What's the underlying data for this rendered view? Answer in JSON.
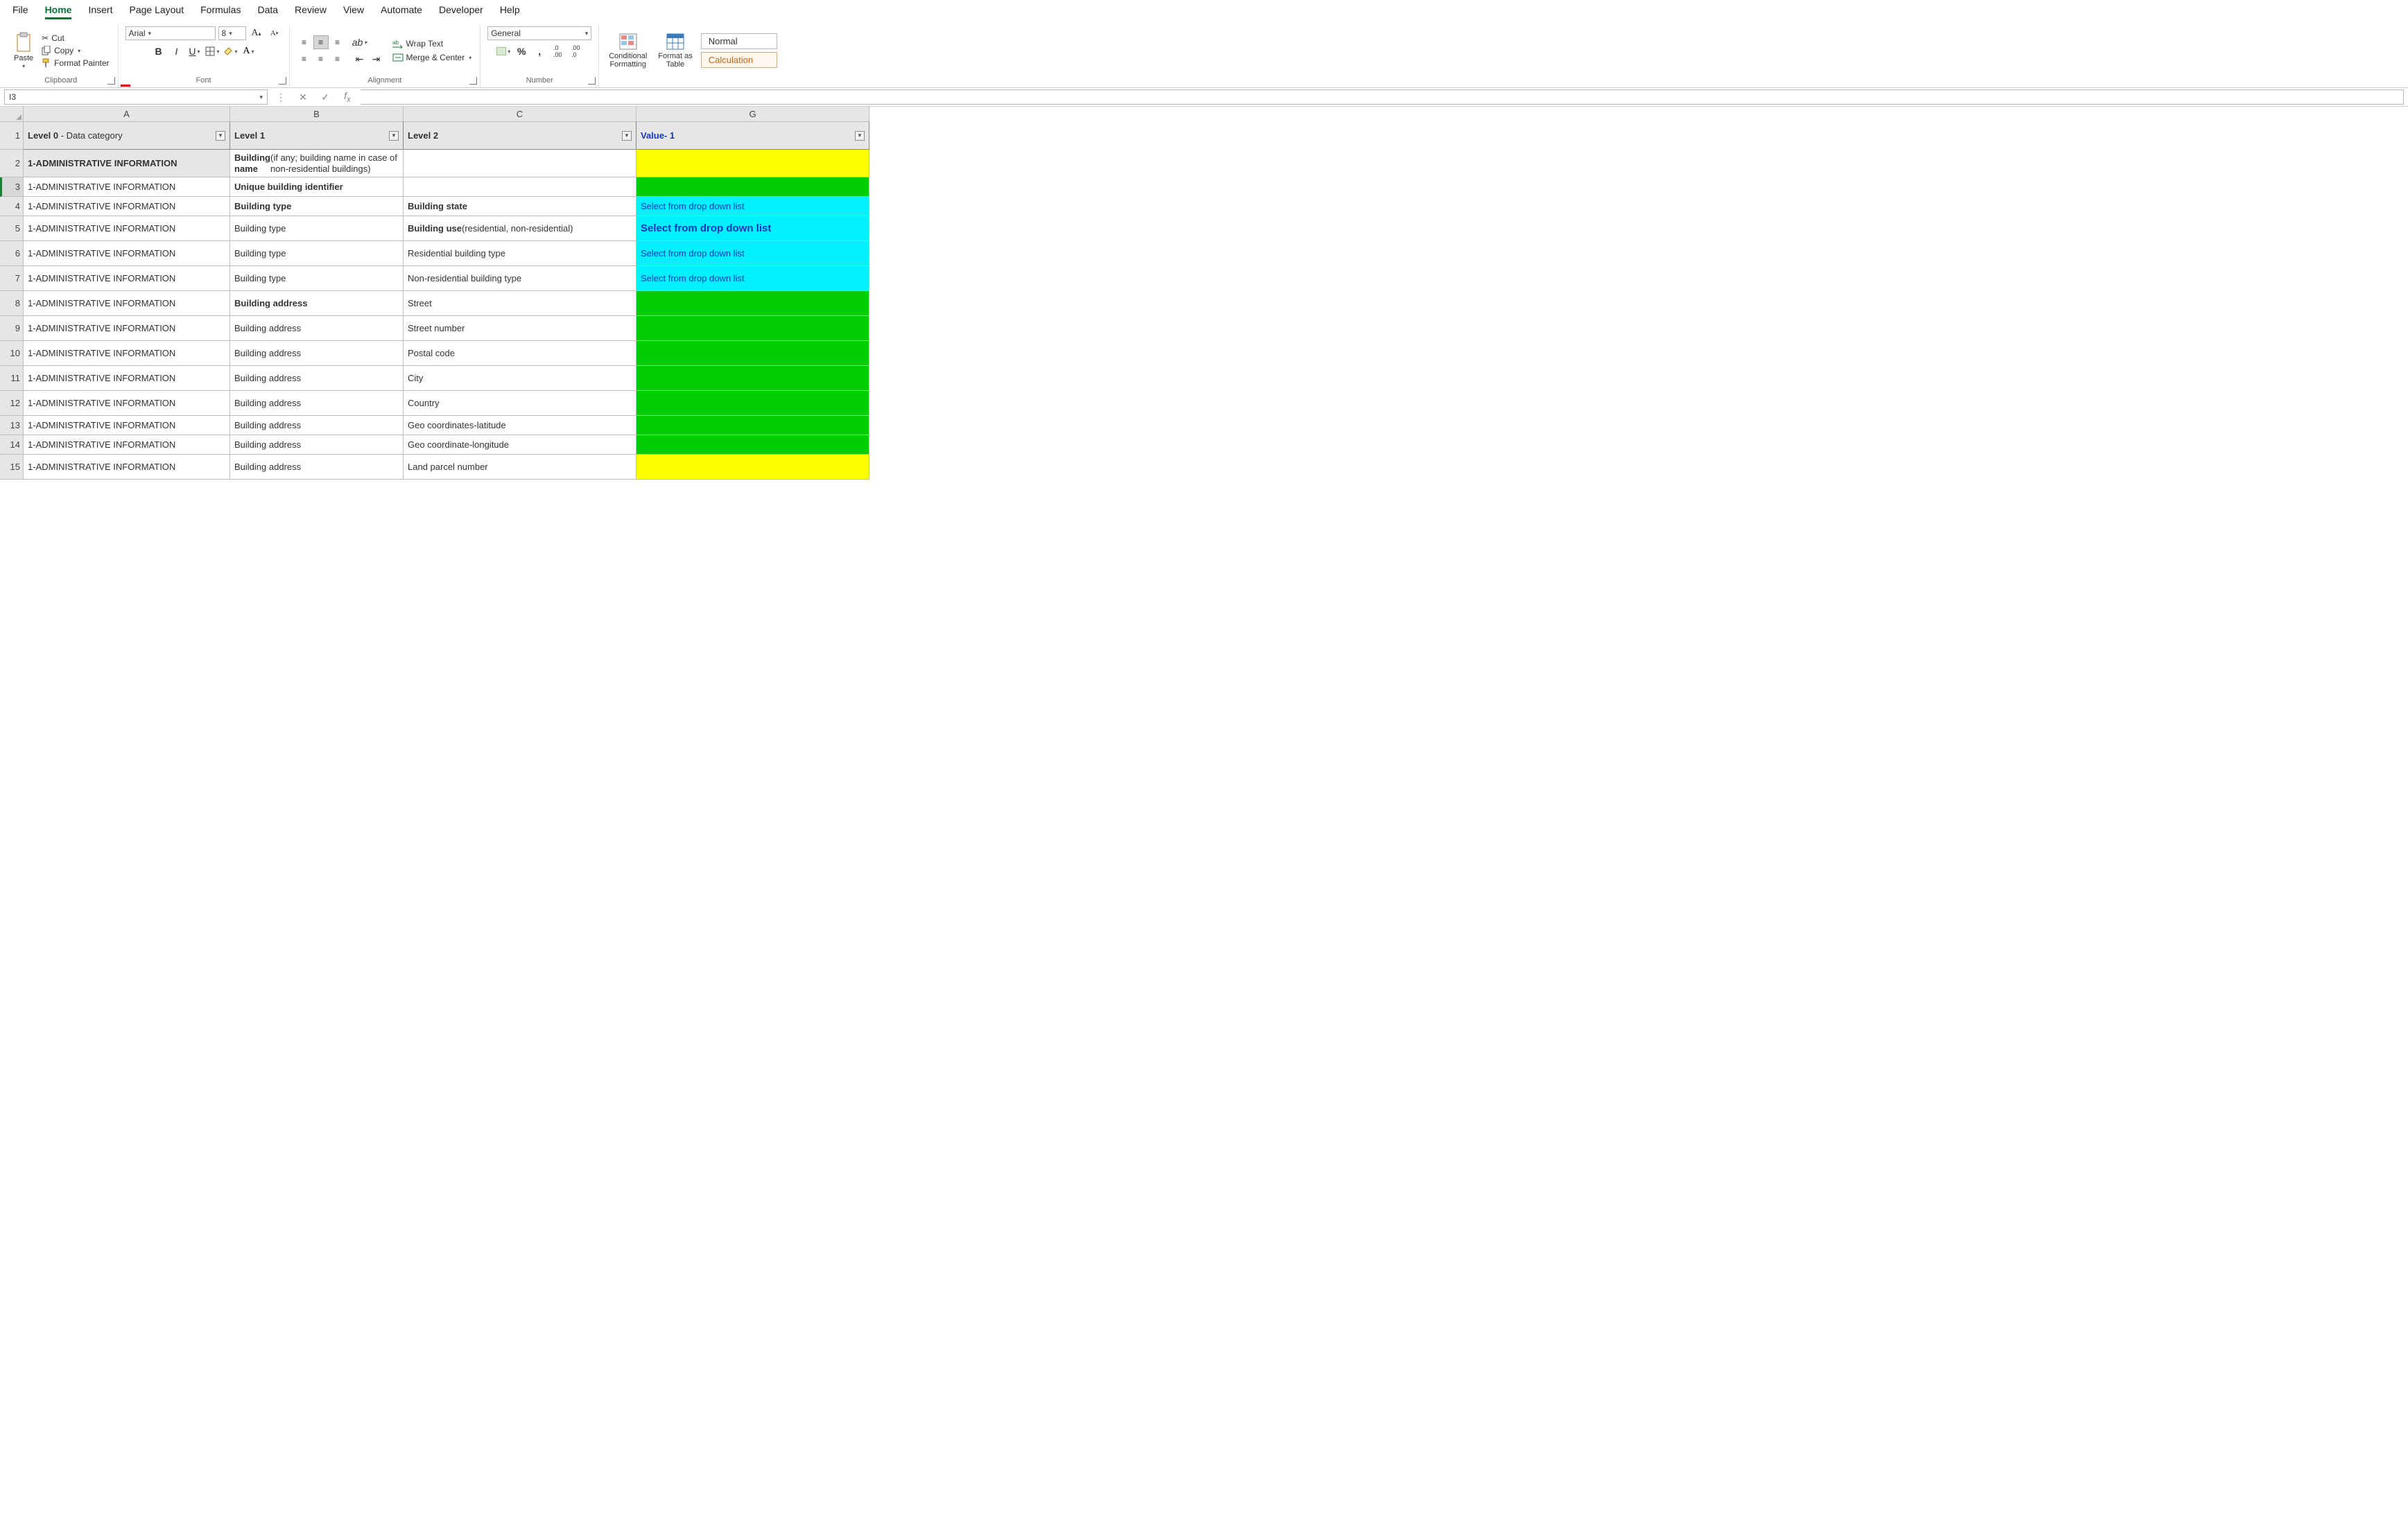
{
  "menubar": {
    "items": [
      "File",
      "Home",
      "Insert",
      "Page Layout",
      "Formulas",
      "Data",
      "Review",
      "View",
      "Automate",
      "Developer",
      "Help"
    ],
    "active_index": 1
  },
  "ribbon": {
    "clipboard": {
      "paste": "Paste",
      "cut": "Cut",
      "copy": "Copy",
      "format_painter": "Format Painter",
      "group_label": "Clipboard"
    },
    "font": {
      "family": "Arial",
      "size": "8",
      "group_label": "Font"
    },
    "alignment": {
      "wrap": "Wrap Text",
      "merge": "Merge & Center",
      "group_label": "Alignment"
    },
    "number": {
      "format": "General",
      "group_label": "Number"
    },
    "styles": {
      "conditional": "Conditional\nFormatting",
      "format_as": "Format as\nTable",
      "normal": "Normal",
      "calculation": "Calculation"
    }
  },
  "fx": {
    "namebox": "I3",
    "formula": ""
  },
  "columns": {
    "letters": [
      "A",
      "B",
      "C",
      "G"
    ],
    "widths": [
      298,
      250,
      336,
      336
    ],
    "headers": [
      {
        "bold": "Level 0",
        "rest": " - Data category"
      },
      {
        "bold": "Level 1",
        "rest": ""
      },
      {
        "bold": "Level 2",
        "rest": ""
      },
      {
        "bold": "Value- 1",
        "rest": "",
        "color": "#1236c2",
        "center": true
      }
    ]
  },
  "row_header_height": 40,
  "rows": [
    {
      "n": 2,
      "h": 40,
      "a_bold": "1-ADMINISTRATIVE INFORMATION",
      "a_shade": true,
      "b_bold": "Building name",
      "b_rest": " (if any; building name in case of non-residential buildings)",
      "c_bold": "",
      "c_rest": "",
      "g_text": "",
      "g_bg": "#ffff00"
    },
    {
      "n": 3,
      "h": 28,
      "a": "1-ADMINISTRATIVE INFORMATION",
      "selected": true,
      "b_bold": "Unique building identifier",
      "b_rest": "",
      "c_bold": "",
      "c_rest": "",
      "g_text": "",
      "g_bg": "#00cc00"
    },
    {
      "n": 4,
      "h": 28,
      "a": "1-ADMINISTRATIVE INFORMATION",
      "b_bold": "Building type",
      "b_rest": "",
      "c_bold": "Building state",
      "c_rest": "",
      "g_text": "Select from drop down list",
      "g_bg": "#00f0ff",
      "g_color": "#1236c2"
    },
    {
      "n": 5,
      "h": 36,
      "a": "1-ADMINISTRATIVE INFORMATION",
      "b_bold": "",
      "b_rest": "Building type",
      "c_bold": "Building use",
      "c_rest": " (residential, non-residential)",
      "g_text": "Select from drop down list",
      "g_bg": "#00f0ff",
      "g_color": "#1236c2",
      "g_bold": true,
      "g_fs": 15
    },
    {
      "n": 6,
      "h": 36,
      "a": "1-ADMINISTRATIVE INFORMATION",
      "b_bold": "",
      "b_rest": "Building type",
      "c_bold": "",
      "c_rest": "Residential building type",
      "g_text": "Select from drop down list",
      "g_bg": "#00f0ff",
      "g_color": "#1236c2"
    },
    {
      "n": 7,
      "h": 36,
      "a": "1-ADMINISTRATIVE INFORMATION",
      "b_bold": "",
      "b_rest": "Building type",
      "c_bold": "",
      "c_rest": "Non-residential building type",
      "g_text": "Select from drop down list",
      "g_bg": "#00f0ff",
      "g_color": "#1236c2"
    },
    {
      "n": 8,
      "h": 36,
      "a": "1-ADMINISTRATIVE INFORMATION",
      "b_bold": "Building address",
      "b_rest": "",
      "c_bold": "",
      "c_rest": "Street",
      "g_text": "",
      "g_bg": "#00cc00"
    },
    {
      "n": 9,
      "h": 36,
      "a": "1-ADMINISTRATIVE INFORMATION",
      "b_bold": "",
      "b_rest": "Building address",
      "c_bold": "",
      "c_rest": "Street number",
      "g_text": "",
      "g_bg": "#00cc00"
    },
    {
      "n": 10,
      "h": 36,
      "a": "1-ADMINISTRATIVE INFORMATION",
      "b_bold": "",
      "b_rest": "Building address",
      "c_bold": "",
      "c_rest": "Postal code",
      "g_text": "",
      "g_bg": "#00cc00"
    },
    {
      "n": 11,
      "h": 36,
      "a": "1-ADMINISTRATIVE INFORMATION",
      "b_bold": "",
      "b_rest": "Building address",
      "c_bold": "",
      "c_rest": "City",
      "g_text": "",
      "g_bg": "#00cc00"
    },
    {
      "n": 12,
      "h": 36,
      "a": "1-ADMINISTRATIVE INFORMATION",
      "b_bold": "",
      "b_rest": "Building address",
      "c_bold": "",
      "c_rest": "Country",
      "g_text": "",
      "g_bg": "#00cc00"
    },
    {
      "n": 13,
      "h": 28,
      "a": "1-ADMINISTRATIVE INFORMATION",
      "b_bold": "",
      "b_rest": "Building address",
      "c_bold": "",
      "c_rest": "Geo coordinates-latitude",
      "g_text": "",
      "g_bg": "#00cc00"
    },
    {
      "n": 14,
      "h": 28,
      "a": "1-ADMINISTRATIVE INFORMATION",
      "b_bold": "",
      "b_rest": "Building address",
      "c_bold": "",
      "c_rest": "Geo coordinate-longitude",
      "g_text": "",
      "g_bg": "#00cc00"
    },
    {
      "n": 15,
      "h": 36,
      "a": "1-ADMINISTRATIVE INFORMATION",
      "b_bold": "",
      "b_rest": "Building address",
      "c_bold": "",
      "c_rest": "Land parcel number",
      "g_text": "",
      "g_bg": "#ffff00"
    }
  ]
}
